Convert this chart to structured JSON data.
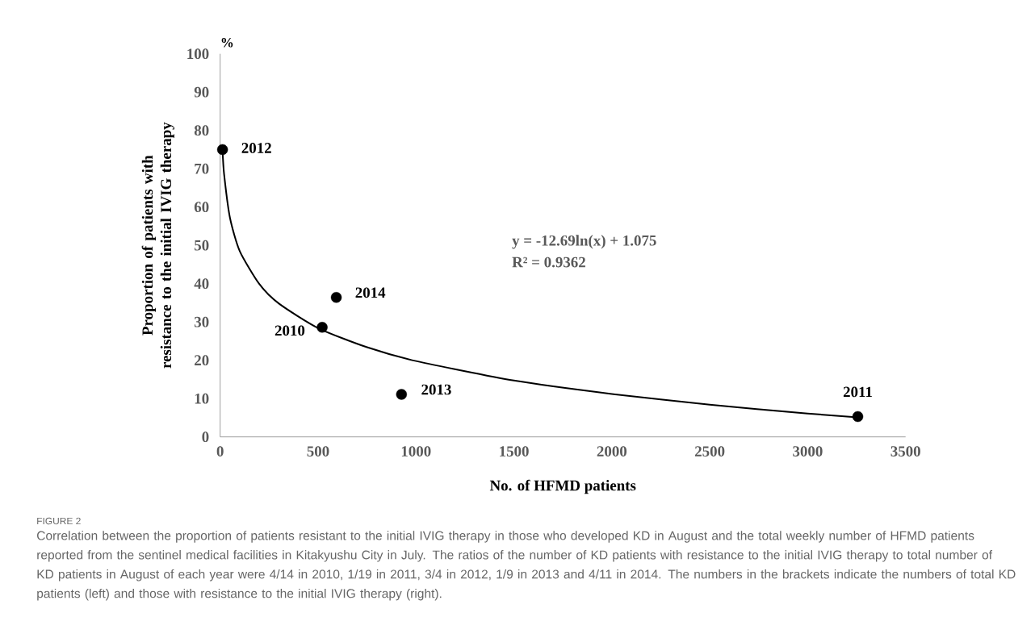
{
  "chart_data": {
    "type": "scatter",
    "xlabel": "No. of HFMD patients",
    "ylabel": "Proportion of patients with resistance to the initial IVIG therapy",
    "xlim": [
      0,
      3500
    ],
    "ylim": [
      0,
      100
    ],
    "xticks": [
      0,
      500,
      1000,
      1500,
      2000,
      2500,
      3000,
      3500
    ],
    "yticks": [
      0,
      10,
      20,
      30,
      40,
      50,
      60,
      70,
      80,
      90,
      100
    ],
    "series": [
      {
        "type": "scatter",
        "color": "#000000",
        "marker": "circle",
        "x": [
          521,
          3256,
          12,
          926,
          593
        ],
        "values": [
          28.6,
          5.3,
          75,
          11.1,
          36.4
        ]
      },
      {
        "type": "line",
        "color": "#000000",
        "marker": "none",
        "x": [
          12,
          20,
          50,
          100,
          200,
          300,
          500,
          750,
          1000,
          1500,
          2000,
          2500,
          3000,
          3256
        ],
        "values": [
          75,
          68.6,
          57.2,
          48.5,
          39.9,
          34.8,
          28.4,
          23.4,
          19.8,
          14.7,
          11.2,
          8.4,
          6.1,
          5.1
        ]
      }
    ],
    "annotations": [
      "%",
      "y = -12.69ln(x) + 1.075",
      "R² = 0.9362",
      {
        "text": "2012",
        "x": 12,
        "y": 75
      },
      {
        "text": "2014",
        "x": 593,
        "y": 36.4
      },
      {
        "text": "2010",
        "x": 521,
        "y": 28.6
      },
      {
        "text": "2013",
        "x": 926,
        "y": 11.1
      },
      {
        "text": "2011",
        "x": 3256,
        "y": 5.3
      },
      "FIGURE 2",
      "Correlation between the proportion of patients resistant to the initial IVIG therapy in those who developed KD in August and the total weekly number of HFMD patients reported from the sentinel medical facilities in Kitakyushu City in July. The ratios of the number of KD patients with resistance to the initial IVIG therapy to total number of KD patients in August of each year were 4/14 in 2010, 1/19 in 2011, 3/4 in 2012, 1/9 in 2013 and 4/11 in 2014. The numbers in the brackets indicate the numbers of total KD patients (left) and those with resistance to the initial IVIG therapy (right)."
    ]
  }
}
